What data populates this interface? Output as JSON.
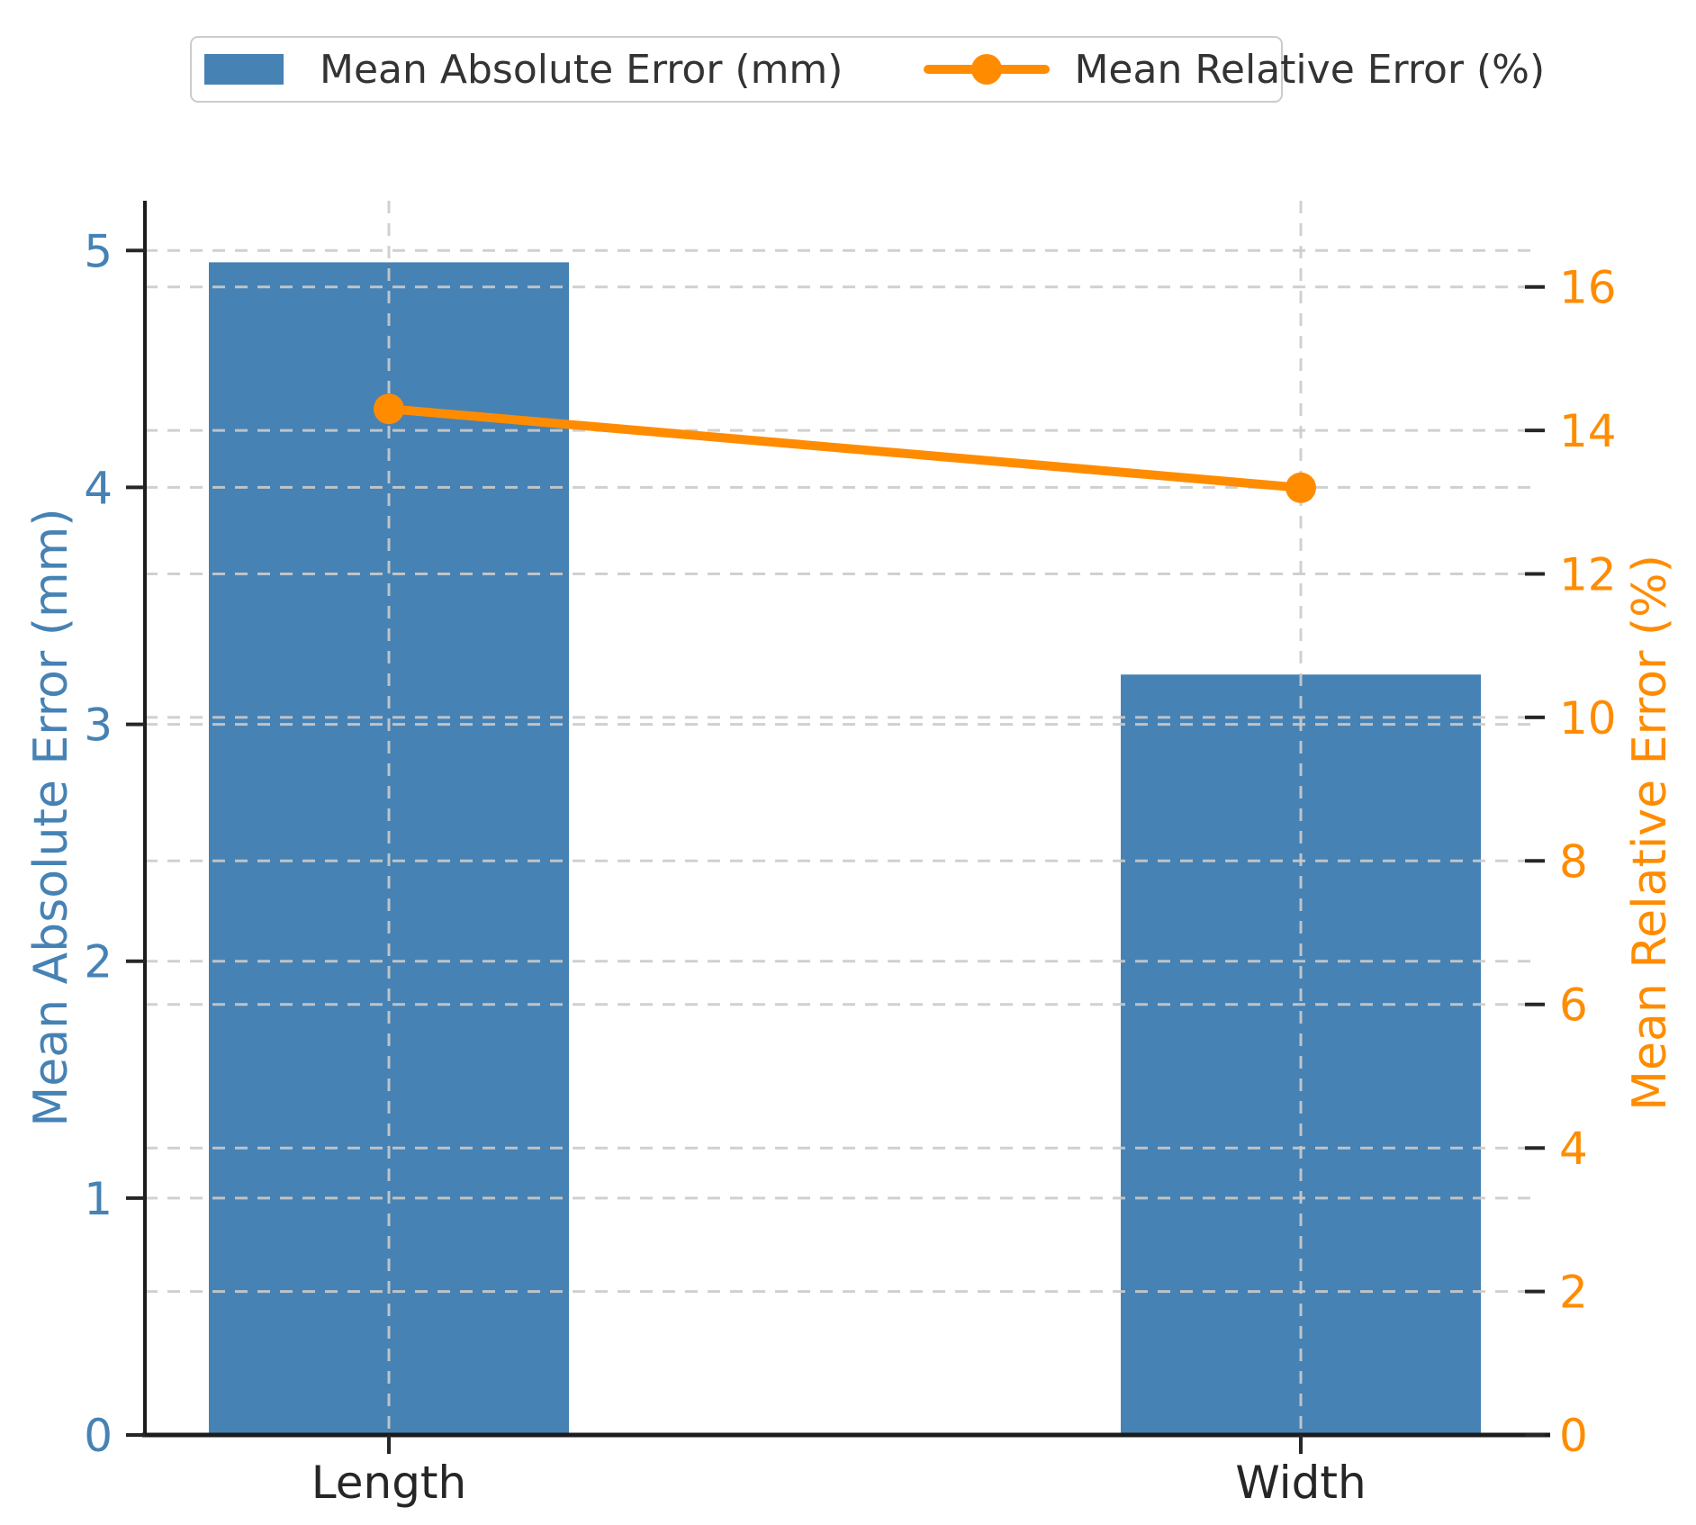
{
  "legend": {
    "items": [
      {
        "label": "Mean Absolute Error (mm)",
        "marker": "bar-swatch"
      },
      {
        "label": "Mean Relative Error (%)",
        "marker": "line-with-dot"
      }
    ]
  },
  "colors": {
    "bar_blue": "#4682B4",
    "line_orange": "#FF8C00",
    "grid": "#cbcbcb",
    "spine": "#1c1c1c",
    "tick_dark": "#262626",
    "legend_text": "#333333",
    "legend_border": "#cccccc"
  },
  "chart_data": {
    "type": "bar",
    "subtype": "dual-axis bar + line combo",
    "categories": [
      "Length",
      "Width"
    ],
    "series": [
      {
        "name": "Mean Absolute Error (mm)",
        "type": "bar",
        "axis": "left",
        "color": "#4682B4",
        "values": [
          4.95,
          3.21
        ]
      },
      {
        "name": "Mean Relative Error (%)",
        "type": "line",
        "axis": "right",
        "color": "#FF8C00",
        "values": [
          14.3,
          13.2
        ]
      }
    ],
    "left_axis": {
      "label": "Mean Absolute Error (mm)",
      "ticks": [
        0,
        1,
        2,
        3,
        4,
        5
      ],
      "range": [
        0,
        5.21
      ],
      "color": "#4682B4"
    },
    "right_axis": {
      "label": "Mean Relative Error (%)",
      "ticks": [
        0,
        2,
        4,
        6,
        8,
        10,
        12,
        14,
        16
      ],
      "range": [
        0,
        17.2
      ],
      "color": "#FF8C00"
    },
    "grid": {
      "visible": true,
      "style": "dashed",
      "horizontal": "both axes major ticks",
      "vertical": "at category centers"
    },
    "legend_position": "top center",
    "title": ""
  }
}
